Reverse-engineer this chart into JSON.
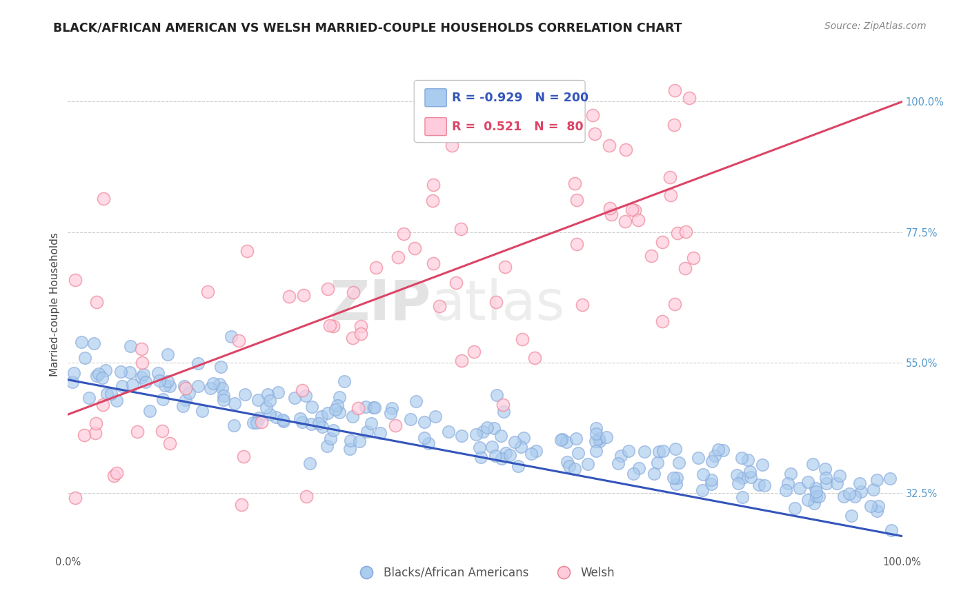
{
  "title": "BLACK/AFRICAN AMERICAN VS WELSH MARRIED-COUPLE HOUSEHOLDS CORRELATION CHART",
  "source": "Source: ZipAtlas.com",
  "ylabel": "Married-couple Households",
  "blue_R": -0.929,
  "blue_N": 200,
  "pink_R": 0.521,
  "pink_N": 80,
  "legend_label_blue": "Blacks/African Americans",
  "legend_label_pink": "Welsh",
  "blue_color": "#88AADD",
  "blue_face_color": "#AACCEE",
  "pink_color": "#EE8899",
  "pink_face_color": "#FFCCDD",
  "blue_line_color": "#3355BB",
  "pink_line_color": "#DD4466",
  "watermark_zip": "ZIP",
  "watermark_atlas": "atlas",
  "background_color": "#FFFFFF",
  "grid_color": "#CCCCCC",
  "seed": 42,
  "n_blue": 200,
  "n_pink": 80,
  "ylim_min": 0.22,
  "ylim_max": 1.08,
  "xlim_min": 0.0,
  "xlim_max": 1.0,
  "yticks": [
    0.325,
    0.55,
    0.775,
    1.0
  ],
  "yticklabels": [
    "32.5%",
    "55.0%",
    "77.5%",
    "100.0%"
  ],
  "xticks": [
    0.0,
    1.0
  ],
  "xticklabels": [
    "0.0%",
    "100.0%"
  ]
}
